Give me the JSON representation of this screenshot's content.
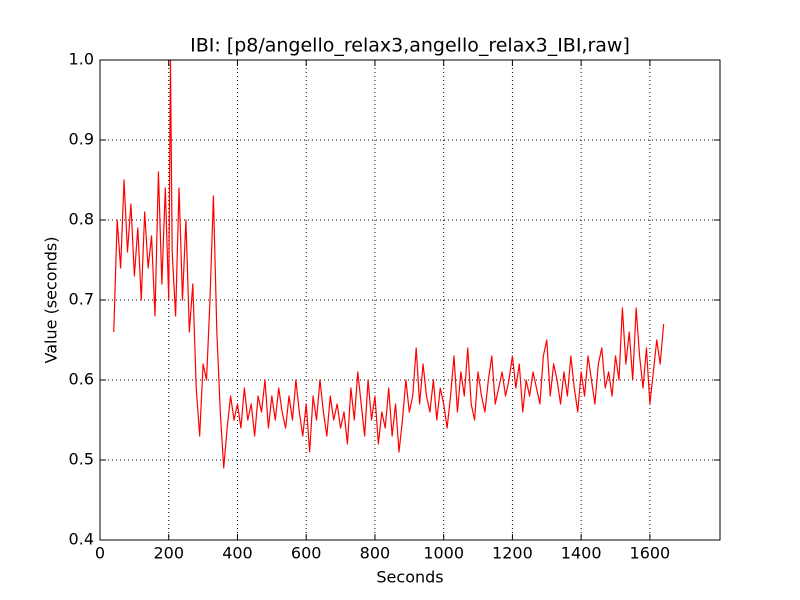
{
  "chart_data": {
    "type": "line",
    "title": "IBI: [p8/angello_relax3,angello_relax3_IBI,raw]",
    "x_label": "Seconds",
    "y_label": "Value (seconds)",
    "color": "#ff0000",
    "grid": true,
    "xlim": [
      0,
      1804
    ],
    "ylim": [
      0.4,
      1
    ],
    "xticks": [
      0,
      200,
      400,
      600,
      800,
      1000,
      1200,
      1400,
      1600
    ],
    "yticks": [
      0.4,
      0.5,
      0.6,
      0.7,
      0.8,
      0.9,
      {
        "value": 1,
        "label": "1.0"
      }
    ],
    "x": [
      40,
      50,
      60,
      70,
      80,
      90,
      100,
      110,
      120,
      130,
      140,
      150,
      160,
      170,
      180,
      190,
      200,
      205,
      210,
      220,
      230,
      240,
      250,
      260,
      270,
      280,
      290,
      300,
      310,
      320,
      330,
      340,
      350,
      360,
      370,
      380,
      390,
      400,
      410,
      420,
      430,
      440,
      450,
      460,
      470,
      480,
      490,
      500,
      510,
      520,
      530,
      540,
      550,
      560,
      570,
      580,
      590,
      600,
      610,
      620,
      630,
      640,
      650,
      660,
      670,
      680,
      690,
      700,
      710,
      720,
      730,
      740,
      750,
      760,
      770,
      780,
      790,
      800,
      810,
      820,
      830,
      840,
      850,
      860,
      870,
      880,
      890,
      900,
      910,
      920,
      930,
      940,
      950,
      960,
      970,
      980,
      990,
      1000,
      1010,
      1020,
      1030,
      1040,
      1050,
      1060,
      1070,
      1080,
      1090,
      1100,
      1110,
      1120,
      1130,
      1140,
      1150,
      1160,
      1170,
      1180,
      1190,
      1200,
      1210,
      1220,
      1230,
      1240,
      1250,
      1260,
      1270,
      1280,
      1290,
      1300,
      1310,
      1320,
      1330,
      1340,
      1350,
      1360,
      1370,
      1380,
      1390,
      1400,
      1410,
      1420,
      1430,
      1440,
      1450,
      1460,
      1470,
      1480,
      1490,
      1500,
      1510,
      1520,
      1530,
      1540,
      1550,
      1560,
      1570,
      1580,
      1590,
      1600,
      1610,
      1620,
      1630,
      1640
    ],
    "values": [
      0.66,
      0.8,
      0.74,
      0.85,
      0.76,
      0.82,
      0.73,
      0.79,
      0.7,
      0.81,
      0.74,
      0.78,
      0.68,
      0.86,
      0.72,
      0.84,
      0.7,
      1.0,
      0.76,
      0.68,
      0.84,
      0.7,
      0.8,
      0.66,
      0.72,
      0.59,
      0.53,
      0.62,
      0.6,
      0.7,
      0.83,
      0.66,
      0.56,
      0.49,
      0.54,
      0.58,
      0.55,
      0.57,
      0.54,
      0.59,
      0.55,
      0.57,
      0.53,
      0.58,
      0.56,
      0.6,
      0.54,
      0.58,
      0.55,
      0.59,
      0.56,
      0.54,
      0.58,
      0.55,
      0.6,
      0.56,
      0.53,
      0.57,
      0.51,
      0.58,
      0.55,
      0.6,
      0.56,
      0.53,
      0.58,
      0.55,
      0.57,
      0.54,
      0.56,
      0.52,
      0.59,
      0.55,
      0.61,
      0.57,
      0.53,
      0.6,
      0.55,
      0.58,
      0.52,
      0.56,
      0.54,
      0.59,
      0.53,
      0.57,
      0.51,
      0.55,
      0.6,
      0.56,
      0.58,
      0.64,
      0.57,
      0.62,
      0.58,
      0.56,
      0.6,
      0.55,
      0.59,
      0.57,
      0.54,
      0.58,
      0.63,
      0.56,
      0.61,
      0.58,
      0.64,
      0.57,
      0.55,
      0.61,
      0.58,
      0.56,
      0.6,
      0.63,
      0.57,
      0.59,
      0.61,
      0.58,
      0.6,
      0.63,
      0.59,
      0.62,
      0.56,
      0.6,
      0.58,
      0.61,
      0.59,
      0.57,
      0.63,
      0.65,
      0.58,
      0.62,
      0.6,
      0.57,
      0.61,
      0.58,
      0.63,
      0.59,
      0.56,
      0.61,
      0.58,
      0.63,
      0.6,
      0.57,
      0.62,
      0.64,
      0.59,
      0.61,
      0.58,
      0.63,
      0.6,
      0.69,
      0.62,
      0.66,
      0.6,
      0.69,
      0.63,
      0.59,
      0.64,
      0.57,
      0.61,
      0.65,
      0.62,
      0.67
    ]
  }
}
